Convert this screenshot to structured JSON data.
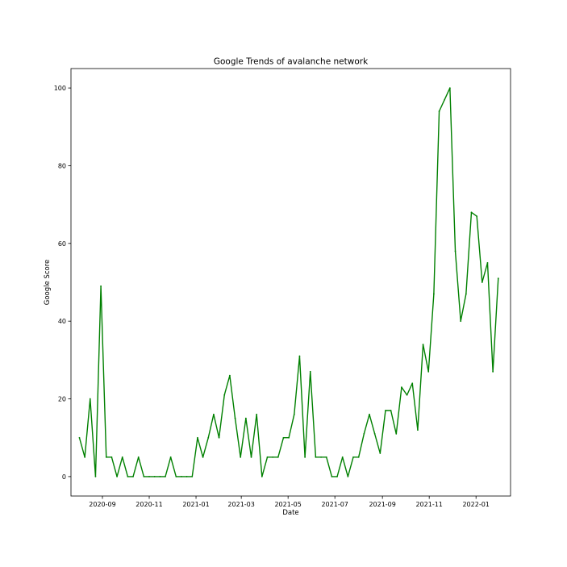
{
  "chart_data": {
    "type": "line",
    "title": "Google Trends of avalanche network",
    "xlabel": "Date",
    "ylabel": "Google Score",
    "xlim": [
      "2020-07-22",
      "2022-02-15"
    ],
    "ylim": [
      -5,
      105
    ],
    "xticks": [
      "2020-09-01",
      "2020-11-01",
      "2021-01-01",
      "2021-03-01",
      "2021-05-01",
      "2021-07-01",
      "2021-09-01",
      "2021-11-01",
      "2022-01-01"
    ],
    "xtick_labels": [
      "2020-09",
      "2020-11",
      "2021-01",
      "2021-03",
      "2021-05",
      "2021-07",
      "2021-09",
      "2021-11",
      "2022-01"
    ],
    "yticks": [
      0,
      20,
      40,
      60,
      80,
      100
    ],
    "grid": false,
    "line_color": "#008000",
    "x": [
      "2020-08-02",
      "2020-08-09",
      "2020-08-16",
      "2020-08-23",
      "2020-08-30",
      "2020-09-06",
      "2020-09-13",
      "2020-09-20",
      "2020-09-27",
      "2020-10-04",
      "2020-10-11",
      "2020-10-18",
      "2020-10-25",
      "2020-11-01",
      "2020-11-08",
      "2020-11-15",
      "2020-11-22",
      "2020-11-29",
      "2020-12-06",
      "2020-12-13",
      "2020-12-20",
      "2020-12-27",
      "2021-01-03",
      "2021-01-10",
      "2021-01-17",
      "2021-01-24",
      "2021-01-31",
      "2021-02-07",
      "2021-02-14",
      "2021-02-21",
      "2021-02-28",
      "2021-03-07",
      "2021-03-14",
      "2021-03-21",
      "2021-03-28",
      "2021-04-04",
      "2021-04-11",
      "2021-04-18",
      "2021-04-25",
      "2021-05-02",
      "2021-05-09",
      "2021-05-16",
      "2021-05-23",
      "2021-05-30",
      "2021-06-06",
      "2021-06-13",
      "2021-06-20",
      "2021-06-27",
      "2021-07-04",
      "2021-07-11",
      "2021-07-18",
      "2021-07-25",
      "2021-08-01",
      "2021-08-08",
      "2021-08-15",
      "2021-08-22",
      "2021-08-29",
      "2021-09-05",
      "2021-09-12",
      "2021-09-19",
      "2021-09-26",
      "2021-10-03",
      "2021-10-10",
      "2021-10-17",
      "2021-10-24",
      "2021-10-31",
      "2021-11-07",
      "2021-11-14",
      "2021-11-21",
      "2021-11-28",
      "2021-12-05",
      "2021-12-12",
      "2021-12-19",
      "2021-12-26",
      "2022-01-02",
      "2022-01-09",
      "2022-01-16",
      "2022-01-23",
      "2022-01-30"
    ],
    "series": [
      {
        "values": [
          10,
          5,
          20,
          0,
          49,
          5,
          5,
          0,
          5,
          0,
          0,
          5,
          0,
          0,
          0,
          0,
          0,
          5,
          0,
          0,
          0,
          0,
          10,
          5,
          10,
          16,
          10,
          21,
          26,
          15,
          5,
          15,
          5,
          16,
          0,
          5,
          5,
          5,
          10,
          10,
          16,
          31,
          5,
          27,
          5,
          5,
          5,
          0,
          0,
          5,
          0,
          5,
          5,
          11,
          16,
          11,
          6,
          17,
          17,
          11,
          23,
          21,
          24,
          12,
          34,
          27,
          47,
          94,
          97,
          100,
          58,
          40,
          47,
          68,
          67,
          50,
          55,
          27,
          51
        ]
      }
    ]
  }
}
